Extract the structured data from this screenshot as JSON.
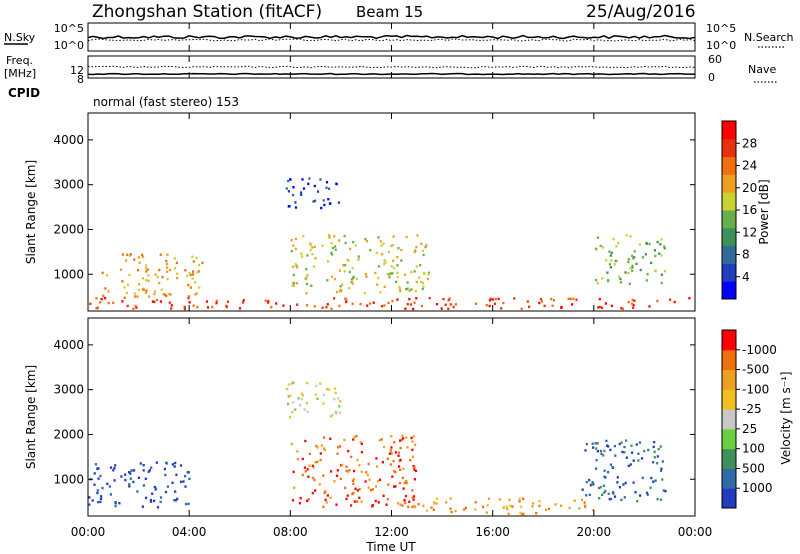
{
  "header": {
    "station": "Zhongshan Station (fitACF)",
    "beam": "Beam 15",
    "date": "25/Aug/2016"
  },
  "strip1": {
    "left_label": "N.Sky",
    "right_label": "N.Search",
    "left_ticks": [
      "10^5",
      "10^0"
    ],
    "right_ticks": [
      "10^5",
      "10^0"
    ]
  },
  "strip2": {
    "left_label_1": "Freq.",
    "left_label_2": "[MHz]",
    "right_label": "Nave",
    "left_ticks": [
      "12",
      "8"
    ],
    "right_ticks": [
      "60",
      "0"
    ]
  },
  "cpid": {
    "label": "CPID",
    "value": "normal (fast stereo) 153"
  },
  "chart_data": [
    {
      "type": "heatmap",
      "name": "power",
      "ylabel": "Slant Range [km]",
      "ylim": [
        180,
        4600
      ],
      "yticks": [
        "1000",
        "2000",
        "3000",
        "4000"
      ],
      "xlim": [
        0,
        24
      ],
      "xticks": [
        "00:00",
        "04:00",
        "08:00",
        "12:00",
        "16:00",
        "20:00",
        "00:00"
      ],
      "colorbar_label": "Power [dB]",
      "colorbar_ticks": [
        "4",
        "8",
        "12",
        "16",
        "20",
        "24",
        "28"
      ],
      "colorbar_colors": [
        "#0000ff",
        "#1f3dbe",
        "#2f6a9a",
        "#3f8f5a",
        "#6ab04a",
        "#c8d232",
        "#f0a020",
        "#f07010",
        "#e83010",
        "#ff0000"
      ],
      "regions": [
        {
          "t": [
            0,
            24
          ],
          "r": [
            250,
            500
          ],
          "level": 8
        },
        {
          "t": [
            0.5,
            4.5
          ],
          "r": [
            500,
            1500
          ],
          "level": 6
        },
        {
          "t": [
            7.8,
            10
          ],
          "r": [
            2500,
            3200
          ],
          "level": 1
        },
        {
          "t": [
            8,
            13.5
          ],
          "r": [
            600,
            1900
          ],
          "level": 5
        },
        {
          "t": [
            20,
            22.8
          ],
          "r": [
            800,
            1900
          ],
          "level": 4
        }
      ]
    },
    {
      "type": "heatmap",
      "name": "velocity",
      "ylabel": "Slant Range [km]",
      "ylim": [
        180,
        4600
      ],
      "yticks": [
        "1000",
        "2000",
        "3000",
        "4000"
      ],
      "xlim": [
        0,
        24
      ],
      "xticks": [
        "00:00",
        "04:00",
        "08:00",
        "12:00",
        "16:00",
        "20:00",
        "00:00"
      ],
      "xlabel": "Time UT",
      "colorbar_label": "Velocity [m s⁻¹]",
      "colorbar_ticks": [
        "1000",
        "500",
        "100",
        "25",
        "-25",
        "-100",
        "-500",
        "-1000"
      ],
      "colorbar_colors": [
        "#1f3dbe",
        "#2f6aaa",
        "#3f8f5a",
        "#6ad040",
        "#c8c8c8",
        "#f0c020",
        "#f0a020",
        "#f07010",
        "#ff0000"
      ],
      "regions": [
        {
          "t": [
            0,
            4
          ],
          "r": [
            400,
            1400
          ],
          "level": 0
        },
        {
          "t": [
            7.8,
            10
          ],
          "r": [
            2400,
            3200
          ],
          "level": 4
        },
        {
          "t": [
            8,
            13
          ],
          "r": [
            400,
            2000
          ],
          "level": 7
        },
        {
          "t": [
            13,
            20
          ],
          "r": [
            250,
            600
          ],
          "level": 6
        },
        {
          "t": [
            19.5,
            22.8
          ],
          "r": [
            500,
            1900
          ],
          "level": 1
        }
      ]
    }
  ]
}
